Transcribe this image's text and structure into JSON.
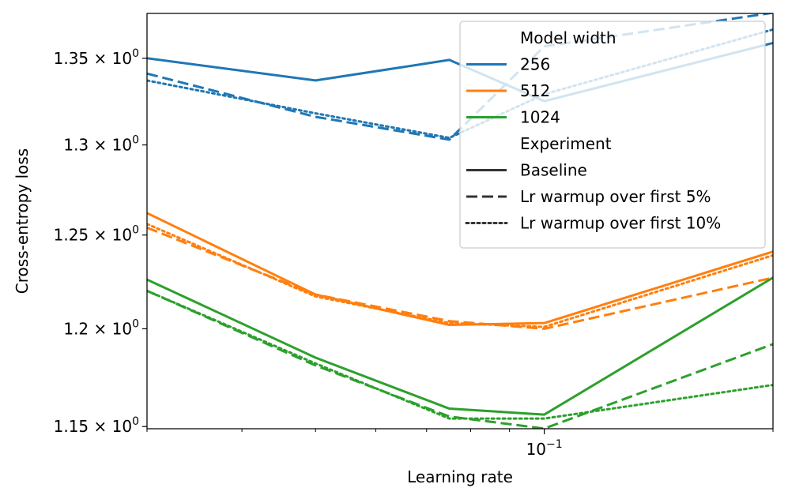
{
  "chart_data": {
    "type": "line",
    "title": "",
    "xlabel": "Learning rate",
    "ylabel": "Cross-entropy loss",
    "xscale": "log",
    "yscale": "log",
    "xlim": [
      0.03,
      0.2
    ],
    "ylim": [
      1.1489,
      1.3766
    ],
    "x": [
      0.03,
      0.05,
      0.075,
      0.1,
      0.2
    ],
    "x_tick_labels": [
      {
        "value": 0.1,
        "base": "10",
        "exp": "−1"
      }
    ],
    "y_tick_labels": [
      {
        "value": 1.15,
        "base": "1.15 × 10",
        "exp": "0"
      },
      {
        "value": 1.2,
        "base": "1.2 × 10",
        "exp": "0"
      },
      {
        "value": 1.25,
        "base": "1.25 × 10",
        "exp": "0"
      },
      {
        "value": 1.3,
        "base": "1.3 × 10",
        "exp": "0"
      },
      {
        "value": 1.35,
        "base": "1.35 × 10",
        "exp": "0"
      }
    ],
    "colors": {
      "256": "#1f77b4",
      "512": "#ff7f0e",
      "1024": "#2ca02c",
      "legend_style": "#333333"
    },
    "series": [
      {
        "name": "256 Baseline",
        "width": "256",
        "style": "solid",
        "values": [
          1.35,
          1.337,
          1.349,
          1.325,
          1.359
        ]
      },
      {
        "name": "256 Lr warmup over first 5%",
        "width": "256",
        "style": "dashed",
        "values": [
          1.341,
          1.316,
          1.303,
          1.357,
          1.377
        ]
      },
      {
        "name": "256 Lr warmup over first 10%",
        "width": "256",
        "style": "dotted",
        "values": [
          1.337,
          1.318,
          1.304,
          1.329,
          1.367
        ]
      },
      {
        "name": "512 Baseline",
        "width": "512",
        "style": "solid",
        "values": [
          1.262,
          1.218,
          1.202,
          1.203,
          1.241
        ]
      },
      {
        "name": "512 Lr warmup over first 5%",
        "width": "512",
        "style": "dashed",
        "values": [
          1.254,
          1.218,
          1.204,
          1.2,
          1.227
        ]
      },
      {
        "name": "512 Lr warmup over first 10%",
        "width": "512",
        "style": "dotted",
        "values": [
          1.256,
          1.217,
          1.203,
          1.201,
          1.239
        ]
      },
      {
        "name": "1024 Baseline",
        "width": "1024",
        "style": "solid",
        "values": [
          1.226,
          1.185,
          1.159,
          1.156,
          1.227
        ]
      },
      {
        "name": "1024 Lr warmup over first 5%",
        "width": "1024",
        "style": "dashed",
        "values": [
          1.22,
          1.181,
          1.155,
          1.149,
          1.192
        ]
      },
      {
        "name": "1024 Lr warmup over first 10%",
        "width": "1024",
        "style": "dotted",
        "values": [
          1.22,
          1.182,
          1.154,
          1.154,
          1.171
        ]
      }
    ],
    "legend": {
      "placement": "top-right",
      "width_title": "Model width",
      "widths": [
        {
          "label": "256",
          "key": "256"
        },
        {
          "label": "512",
          "key": "512"
        },
        {
          "label": "1024",
          "key": "1024"
        }
      ],
      "experiment_title": "Experiment",
      "experiments": [
        {
          "label": "Baseline",
          "style": "solid"
        },
        {
          "label": "Lr warmup over first 5%",
          "style": "dashed"
        },
        {
          "label": "Lr warmup over first 10%",
          "style": "dotted"
        }
      ]
    }
  }
}
